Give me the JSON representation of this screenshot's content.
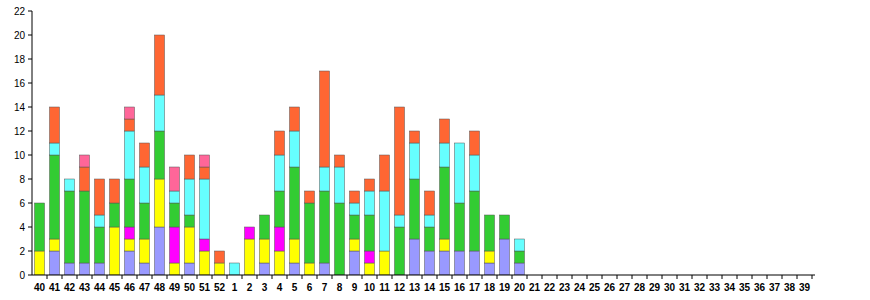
{
  "chart_data": {
    "type": "bar",
    "stacked": true,
    "categories": [
      "40",
      "41",
      "42",
      "43",
      "44",
      "45",
      "46",
      "47",
      "48",
      "49",
      "50",
      "51",
      "52",
      "1",
      "2",
      "3",
      "4",
      "5",
      "6",
      "7",
      "8",
      "9",
      "10",
      "11",
      "12",
      "13",
      "14",
      "15",
      "16",
      "17",
      "18",
      "19",
      "20",
      "21",
      "22",
      "23",
      "24",
      "25",
      "26",
      "27",
      "28",
      "29",
      "30",
      "31",
      "32",
      "33",
      "34",
      "35",
      "36",
      "37",
      "38",
      "39"
    ],
    "series": [
      {
        "color": "#9999ff",
        "values": [
          0,
          2,
          1,
          1,
          1,
          0,
          2,
          1,
          4,
          0,
          1,
          0,
          0,
          0,
          0,
          1,
          0,
          1,
          0,
          1,
          0,
          2,
          0,
          0,
          0,
          3,
          2,
          2,
          2,
          2,
          1,
          3,
          1,
          0,
          0,
          0,
          0,
          0,
          0,
          0,
          0,
          0,
          0,
          0,
          0,
          0,
          0,
          0,
          0,
          0,
          0,
          0
        ]
      },
      {
        "color": "#ffff00",
        "values": [
          2,
          1,
          0,
          0,
          0,
          4,
          1,
          2,
          4,
          1,
          3,
          2,
          1,
          0,
          3,
          2,
          2,
          2,
          1,
          0,
          0,
          1,
          1,
          2,
          0,
          0,
          0,
          1,
          0,
          0,
          1,
          0,
          0,
          0,
          0,
          0,
          0,
          0,
          0,
          0,
          0,
          0,
          0,
          0,
          0,
          0,
          0,
          0,
          0,
          0,
          0,
          0
        ]
      },
      {
        "color": "#ff00ff",
        "values": [
          0,
          0,
          0,
          0,
          0,
          0,
          1,
          0,
          0,
          3,
          0,
          1,
          0,
          0,
          1,
          0,
          2,
          0,
          0,
          0,
          0,
          0,
          1,
          0,
          0,
          0,
          0,
          0,
          0,
          0,
          0,
          0,
          0,
          0,
          0,
          0,
          0,
          0,
          0,
          0,
          0,
          0,
          0,
          0,
          0,
          0,
          0,
          0,
          0,
          0,
          0,
          0
        ]
      },
      {
        "color": "#33cc33",
        "values": [
          4,
          7,
          6,
          6,
          3,
          2,
          4,
          3,
          4,
          2,
          1,
          0,
          0,
          0,
          0,
          2,
          3,
          6,
          5,
          6,
          6,
          2,
          3,
          0,
          4,
          5,
          2,
          6,
          4,
          5,
          3,
          2,
          1,
          0,
          0,
          0,
          0,
          0,
          0,
          0,
          0,
          0,
          0,
          0,
          0,
          0,
          0,
          0,
          0,
          0,
          0,
          0
        ]
      },
      {
        "color": "#66ffff",
        "values": [
          0,
          1,
          1,
          0,
          1,
          0,
          4,
          3,
          3,
          1,
          3,
          5,
          0,
          1,
          0,
          0,
          3,
          3,
          0,
          2,
          3,
          1,
          2,
          5,
          1,
          3,
          1,
          2,
          5,
          3,
          0,
          0,
          1,
          0,
          0,
          0,
          0,
          0,
          0,
          0,
          0,
          0,
          0,
          0,
          0,
          0,
          0,
          0,
          0,
          0,
          0,
          0
        ]
      },
      {
        "color": "#ff6633",
        "values": [
          0,
          3,
          0,
          2,
          3,
          2,
          1,
          2,
          5,
          0,
          2,
          1,
          1,
          0,
          0,
          0,
          2,
          2,
          1,
          8,
          1,
          1,
          1,
          3,
          9,
          1,
          2,
          2,
          0,
          2,
          0,
          0,
          0,
          0,
          0,
          0,
          0,
          0,
          0,
          0,
          0,
          0,
          0,
          0,
          0,
          0,
          0,
          0,
          0,
          0,
          0,
          0
        ]
      },
      {
        "color": "#ff6699",
        "values": [
          0,
          0,
          0,
          1,
          0,
          0,
          1,
          0,
          0,
          2,
          0,
          1,
          0,
          0,
          0,
          0,
          0,
          0,
          0,
          0,
          0,
          0,
          0,
          0,
          0,
          0,
          0,
          0,
          0,
          0,
          0,
          0,
          0,
          0,
          0,
          0,
          0,
          0,
          0,
          0,
          0,
          0,
          0,
          0,
          0,
          0,
          0,
          0,
          0,
          0,
          0,
          0
        ]
      }
    ],
    "ylim": [
      0,
      22
    ],
    "yticks": [
      0,
      2,
      4,
      6,
      8,
      10,
      12,
      14,
      16,
      18,
      20,
      22
    ]
  }
}
